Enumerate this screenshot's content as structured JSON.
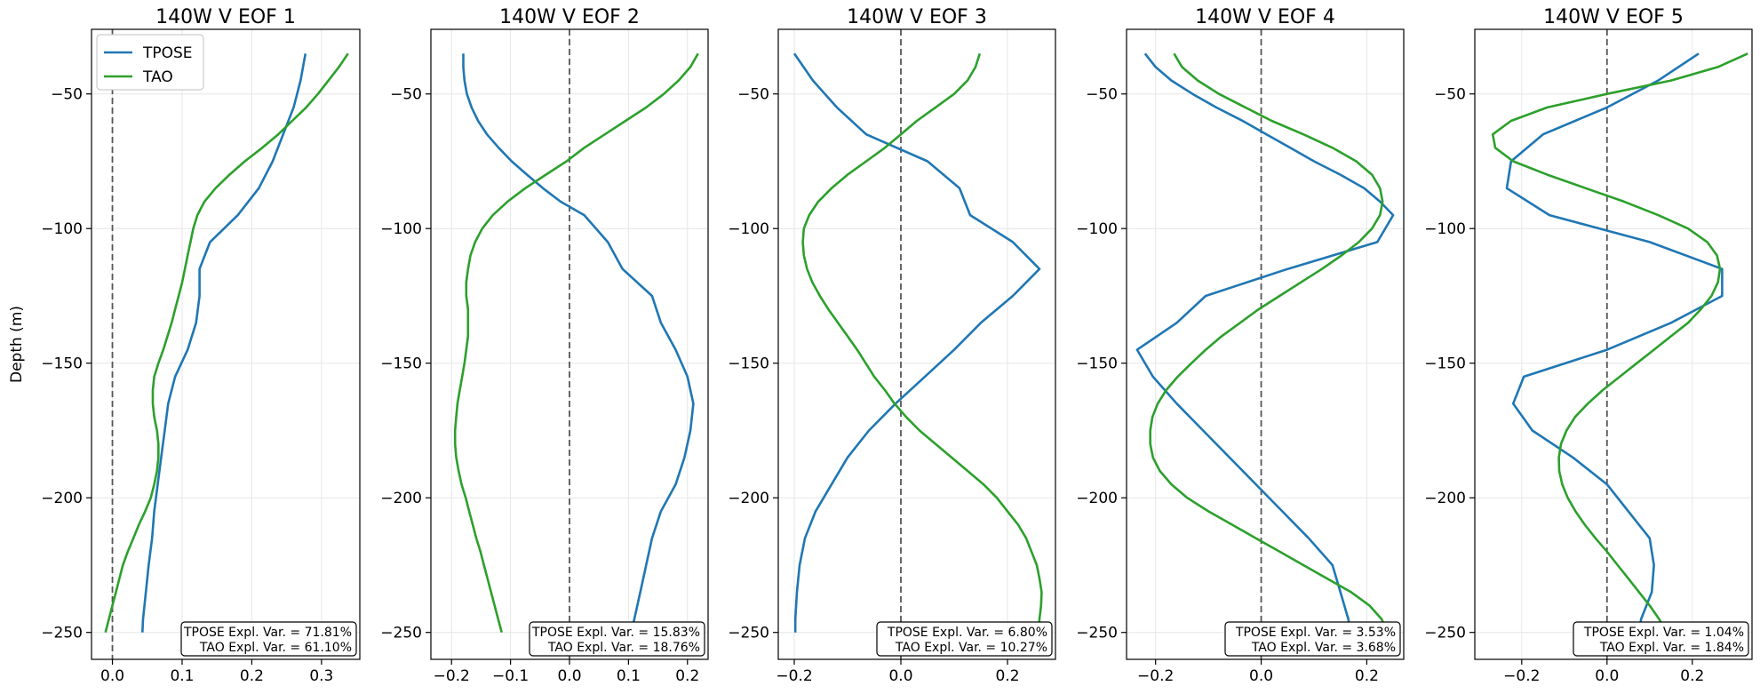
{
  "chart_data": {
    "type": "line",
    "ylabel": "Depth (m)",
    "legend": {
      "placement": "top-left",
      "entries": [
        "TPOSE",
        "TAO"
      ]
    },
    "colors": {
      "TPOSE": "#1f77b4",
      "TAO": "#2ca02c",
      "zero_line": "#555555"
    },
    "grid": true,
    "ylim": [
      -260,
      -26
    ],
    "yticks": [
      -50,
      -100,
      -150,
      -200,
      -250
    ],
    "panels": [
      {
        "title": "140W V EOF 1",
        "xlim": [
          -0.03,
          0.355
        ],
        "xticks": [
          0.0,
          0.1,
          0.2,
          0.3
        ],
        "xtick_labels": [
          "0.0",
          "0.1",
          "0.2",
          "0.3"
        ],
        "stats": [
          "TPOSE Expl. Var. = 71.81%",
          "TAO Expl. Var. = 61.10%"
        ],
        "series": [
          {
            "name": "TPOSE",
            "depth": [
              -35,
              -45,
              -55,
              -65,
              -75,
              -85,
              -95,
              -105,
              -115,
              -125,
              -135,
              -145,
              -155,
              -165,
              -175,
              -185,
              -195,
              -205,
              -215,
              -225,
              -235,
              -245,
              -250
            ],
            "values": [
              0.277,
              0.27,
              0.26,
              0.245,
              0.23,
              0.21,
              0.18,
              0.14,
              0.125,
              0.125,
              0.12,
              0.108,
              0.09,
              0.08,
              0.075,
              0.07,
              0.065,
              0.06,
              0.057,
              0.052,
              0.048,
              0.044,
              0.043
            ]
          },
          {
            "name": "TAO",
            "depth": [
              -35,
              -40,
              -45,
              -50,
              -55,
              -60,
              -65,
              -70,
              -75,
              -80,
              -85,
              -90,
              -95,
              -100,
              -105,
              -110,
              -115,
              -120,
              -125,
              -130,
              -135,
              -140,
              -145,
              -150,
              -155,
              -160,
              -165,
              -170,
              -175,
              -180,
              -185,
              -190,
              -195,
              -200,
              -205,
              -210,
              -215,
              -220,
              -225,
              -230,
              -235,
              -240,
              -245,
              -250
            ],
            "values": [
              0.338,
              0.325,
              0.31,
              0.295,
              0.278,
              0.258,
              0.238,
              0.215,
              0.19,
              0.168,
              0.148,
              0.132,
              0.122,
              0.116,
              0.112,
              0.108,
              0.104,
              0.1,
              0.095,
              0.09,
              0.085,
              0.079,
              0.073,
              0.066,
              0.06,
              0.058,
              0.058,
              0.06,
              0.064,
              0.066,
              0.066,
              0.064,
              0.06,
              0.055,
              0.047,
              0.038,
              0.03,
              0.022,
              0.015,
              0.01,
              0.005,
              0.0,
              -0.005,
              -0.01
            ]
          }
        ]
      },
      {
        "title": "140W V EOF 2",
        "xlim": [
          -0.235,
          0.235
        ],
        "xticks": [
          -0.2,
          -0.1,
          0.0,
          0.1,
          0.2
        ],
        "xtick_labels": [
          "−0.2",
          "−0.1",
          "0.0",
          "0.1",
          "0.2"
        ],
        "stats": [
          "TPOSE Expl. Var. = 15.83%",
          "TAO Expl. Var. = 18.76%"
        ],
        "series": [
          {
            "name": "TPOSE",
            "depth": [
              -35,
              -40,
              -45,
              -50,
              -55,
              -60,
              -65,
              -70,
              -75,
              -80,
              -85,
              -90,
              -95,
              -105,
              -115,
              -125,
              -135,
              -145,
              -155,
              -165,
              -175,
              -185,
              -195,
              -205,
              -215,
              -225,
              -235,
              -245,
              -250
            ],
            "values": [
              -0.18,
              -0.18,
              -0.178,
              -0.174,
              -0.166,
              -0.155,
              -0.14,
              -0.12,
              -0.098,
              -0.072,
              -0.045,
              -0.015,
              0.025,
              0.065,
              0.09,
              0.14,
              0.155,
              0.18,
              0.2,
              0.21,
              0.205,
              0.195,
              0.18,
              0.155,
              0.14,
              0.13,
              0.12,
              0.11,
              0.105
            ]
          },
          {
            "name": "TAO",
            "depth": [
              -35,
              -40,
              -45,
              -50,
              -55,
              -60,
              -65,
              -70,
              -75,
              -80,
              -85,
              -90,
              -95,
              -100,
              -105,
              -110,
              -115,
              -120,
              -125,
              -130,
              -135,
              -140,
              -145,
              -150,
              -155,
              -160,
              -165,
              -170,
              -175,
              -180,
              -185,
              -190,
              -195,
              -200,
              -205,
              -210,
              -215,
              -220,
              -225,
              -230,
              -235,
              -240,
              -245,
              -250
            ],
            "values": [
              0.218,
              0.205,
              0.185,
              0.16,
              0.13,
              0.095,
              0.06,
              0.025,
              -0.005,
              -0.04,
              -0.075,
              -0.105,
              -0.13,
              -0.148,
              -0.16,
              -0.168,
              -0.172,
              -0.175,
              -0.175,
              -0.172,
              -0.172,
              -0.172,
              -0.175,
              -0.178,
              -0.182,
              -0.186,
              -0.19,
              -0.192,
              -0.194,
              -0.194,
              -0.192,
              -0.188,
              -0.183,
              -0.176,
              -0.17,
              -0.164,
              -0.158,
              -0.151,
              -0.145,
              -0.139,
              -0.133,
              -0.127,
              -0.121,
              -0.115
            ]
          }
        ]
      },
      {
        "title": "140W V EOF 3",
        "xlim": [
          -0.23,
          0.29
        ],
        "xticks": [
          -0.2,
          0.0,
          0.2
        ],
        "xtick_labels": [
          "−0.2",
          "0.0",
          "0.2"
        ],
        "stats": [
          "TPOSE Expl. Var. = 6.80%",
          "TAO Expl. Var. = 10.27%"
        ],
        "series": [
          {
            "name": "TPOSE",
            "depth": [
              -35,
              -45,
              -55,
              -65,
              -75,
              -85,
              -95,
              -105,
              -115,
              -125,
              -135,
              -145,
              -155,
              -165,
              -175,
              -185,
              -195,
              -205,
              -215,
              -225,
              -235,
              -245,
              -250
            ],
            "values": [
              -0.2,
              -0.165,
              -0.12,
              -0.065,
              0.05,
              0.11,
              0.13,
              0.21,
              0.26,
              0.21,
              0.15,
              0.1,
              0.045,
              -0.01,
              -0.06,
              -0.1,
              -0.13,
              -0.16,
              -0.18,
              -0.19,
              -0.195,
              -0.198,
              -0.198
            ]
          },
          {
            "name": "TAO",
            "depth": [
              -35,
              -40,
              -45,
              -50,
              -55,
              -60,
              -65,
              -70,
              -75,
              -80,
              -85,
              -90,
              -95,
              -100,
              -105,
              -110,
              -115,
              -120,
              -125,
              -130,
              -135,
              -140,
              -145,
              -150,
              -155,
              -160,
              -165,
              -170,
              -175,
              -180,
              -185,
              -190,
              -195,
              -200,
              -205,
              -210,
              -215,
              -220,
              -225,
              -230,
              -235,
              -240,
              -245,
              -250
            ],
            "values": [
              0.148,
              0.14,
              0.125,
              0.1,
              0.065,
              0.03,
              0.0,
              -0.03,
              -0.065,
              -0.1,
              -0.13,
              -0.155,
              -0.172,
              -0.182,
              -0.184,
              -0.182,
              -0.176,
              -0.166,
              -0.152,
              -0.136,
              -0.118,
              -0.1,
              -0.082,
              -0.066,
              -0.05,
              -0.03,
              -0.012,
              0.01,
              0.035,
              0.065,
              0.095,
              0.125,
              0.155,
              0.18,
              0.2,
              0.22,
              0.235,
              0.245,
              0.255,
              0.26,
              0.264,
              0.263,
              0.26,
              0.258
            ]
          }
        ]
      },
      {
        "title": "140W V EOF 4",
        "xlim": [
          -0.255,
          0.27
        ],
        "xticks": [
          -0.2,
          0.0,
          0.2
        ],
        "xtick_labels": [
          "−0.2",
          "0.0",
          "0.2"
        ],
        "stats": [
          "TPOSE Expl. Var. = 3.53%",
          "TAO Expl. Var. = 3.68%"
        ],
        "series": [
          {
            "name": "TPOSE",
            "depth": [
              -35,
              -40,
              -45,
              -50,
              -55,
              -60,
              -65,
              -70,
              -75,
              -80,
              -85,
              -90,
              -95,
              -105,
              -115,
              -125,
              -135,
              -145,
              -155,
              -165,
              -175,
              -185,
              -195,
              -205,
              -215,
              -225,
              -235,
              -245,
              -250
            ],
            "values": [
              -0.22,
              -0.2,
              -0.17,
              -0.13,
              -0.085,
              -0.035,
              0.01,
              0.055,
              0.1,
              0.15,
              0.195,
              0.225,
              0.25,
              0.22,
              0.05,
              -0.105,
              -0.16,
              -0.235,
              -0.205,
              -0.16,
              -0.11,
              -0.06,
              -0.01,
              0.04,
              0.09,
              0.135,
              0.15,
              0.165,
              0.17
            ]
          },
          {
            "name": "TAO",
            "depth": [
              -35,
              -40,
              -45,
              -50,
              -55,
              -60,
              -65,
              -70,
              -75,
              -80,
              -85,
              -90,
              -95,
              -100,
              -105,
              -110,
              -115,
              -120,
              -125,
              -130,
              -135,
              -140,
              -145,
              -150,
              -155,
              -160,
              -165,
              -170,
              -175,
              -180,
              -185,
              -190,
              -195,
              -200,
              -205,
              -210,
              -215,
              -220,
              -225,
              -230,
              -235,
              -240,
              -245,
              -250
            ],
            "values": [
              -0.165,
              -0.15,
              -0.12,
              -0.08,
              -0.03,
              0.02,
              0.08,
              0.135,
              0.18,
              0.21,
              0.225,
              0.23,
              0.225,
              0.21,
              0.185,
              0.152,
              0.115,
              0.075,
              0.035,
              -0.005,
              -0.04,
              -0.075,
              -0.105,
              -0.132,
              -0.158,
              -0.18,
              -0.196,
              -0.206,
              -0.21,
              -0.21,
              -0.205,
              -0.192,
              -0.17,
              -0.14,
              -0.1,
              -0.055,
              -0.01,
              0.035,
              0.08,
              0.125,
              0.17,
              0.205,
              0.228,
              0.24
            ]
          }
        ]
      },
      {
        "title": "140W V EOF 5",
        "xlim": [
          -0.31,
          0.34
        ],
        "xticks": [
          -0.2,
          0.0,
          0.2
        ],
        "xtick_labels": [
          "−0.2",
          "0.0",
          "0.2"
        ],
        "stats": [
          "TPOSE Expl. Var. = 1.04%",
          "TAO Expl. Var. = 1.84%"
        ],
        "series": [
          {
            "name": "TPOSE",
            "depth": [
              -35,
              -45,
              -55,
              -65,
              -75,
              -85,
              -95,
              -105,
              -115,
              -125,
              -135,
              -145,
              -155,
              -165,
              -175,
              -185,
              -195,
              -205,
              -215,
              -225,
              -235,
              -245,
              -250
            ],
            "values": [
              0.215,
              0.12,
              0.0,
              -0.15,
              -0.225,
              -0.235,
              -0.135,
              0.1,
              0.27,
              0.27,
              0.15,
              0.0,
              -0.195,
              -0.22,
              -0.175,
              -0.08,
              0.0,
              0.05,
              0.1,
              0.11,
              0.105,
              0.08,
              0.075
            ]
          },
          {
            "name": "TAO",
            "depth": [
              -35,
              -40,
              -45,
              -50,
              -55,
              -60,
              -65,
              -70,
              -75,
              -80,
              -85,
              -90,
              -95,
              -100,
              -105,
              -110,
              -115,
              -120,
              -125,
              -130,
              -135,
              -140,
              -145,
              -150,
              -155,
              -160,
              -165,
              -170,
              -175,
              -180,
              -185,
              -190,
              -195,
              -200,
              -205,
              -210,
              -215,
              -220,
              -225,
              -230,
              -235,
              -240,
              -245,
              -250
            ],
            "values": [
              0.33,
              0.26,
              0.15,
              0.0,
              -0.14,
              -0.225,
              -0.268,
              -0.262,
              -0.22,
              -0.14,
              -0.05,
              0.04,
              0.12,
              0.19,
              0.235,
              0.258,
              0.265,
              0.26,
              0.245,
              0.22,
              0.19,
              0.15,
              0.11,
              0.07,
              0.03,
              -0.01,
              -0.045,
              -0.075,
              -0.095,
              -0.108,
              -0.113,
              -0.112,
              -0.105,
              -0.092,
              -0.074,
              -0.052,
              -0.027,
              0.0,
              0.025,
              0.05,
              0.075,
              0.1,
              0.122,
              0.14
            ]
          }
        ]
      }
    ]
  }
}
